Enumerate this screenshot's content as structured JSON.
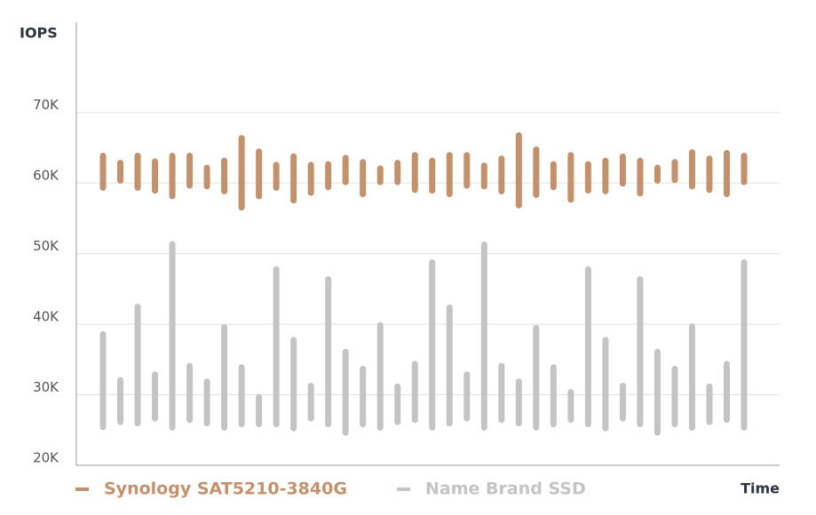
{
  "chart_data": {
    "type": "bar",
    "y_label": "IOPS",
    "x_label": "Time",
    "ylim": [
      20000,
      82800
    ],
    "yticks": [
      {
        "value": 20000,
        "label": "20K"
      },
      {
        "value": 30000,
        "label": "30K"
      },
      {
        "value": 40000,
        "label": "40K"
      },
      {
        "value": 50000,
        "label": "50K"
      },
      {
        "value": 60000,
        "label": "60K"
      },
      {
        "value": 70000,
        "label": "70K"
      }
    ],
    "grid": true,
    "series": [
      {
        "name": "Synology SAT5210-3840G",
        "color": "#c4916a",
        "low": [
          58900,
          59900,
          58900,
          58500,
          57700,
          59200,
          59100,
          58400,
          56100,
          57700,
          58900,
          57100,
          58200,
          59000,
          59700,
          58000,
          59700,
          59700,
          58600,
          58500,
          58000,
          59200,
          59100,
          58400,
          56400,
          57900,
          59000,
          57200,
          58500,
          58400,
          59500,
          58100,
          59900,
          60000,
          59100,
          58600,
          58000,
          59700
        ],
        "high": [
          64300,
          63300,
          64300,
          63500,
          64300,
          64300,
          62600,
          63600,
          66800,
          64900,
          63000,
          64200,
          63000,
          63100,
          64000,
          63400,
          62500,
          63300,
          64400,
          63600,
          64400,
          64400,
          62900,
          63900,
          67200,
          65200,
          63100,
          64400,
          63100,
          63600,
          64200,
          63600,
          62600,
          63400,
          64800,
          63900,
          64700,
          64300
        ]
      },
      {
        "name": "Name Brand SSD",
        "color": "#c4c4c4",
        "low": [
          25000,
          25700,
          25500,
          26200,
          24900,
          26000,
          25500,
          24900,
          25400,
          25400,
          25400,
          24800,
          26200,
          25400,
          24200,
          25400,
          24900,
          25700,
          26000,
          24900,
          25500,
          26200,
          24900,
          26000,
          25500,
          24900,
          25400,
          26000,
          25400,
          24800,
          26200,
          25400,
          24200,
          25400,
          24900,
          25700,
          26000,
          24900
        ],
        "high": [
          39000,
          32500,
          42900,
          33300,
          51800,
          34500,
          32300,
          40000,
          34300,
          30100,
          48200,
          38200,
          31700,
          46800,
          36500,
          34100,
          40300,
          31600,
          34800,
          49200,
          42800,
          33300,
          51700,
          34500,
          32300,
          39900,
          34300,
          30800,
          48200,
          38200,
          31700,
          46800,
          36500,
          34100,
          40100,
          31600,
          34800,
          49200
        ]
      }
    ]
  }
}
